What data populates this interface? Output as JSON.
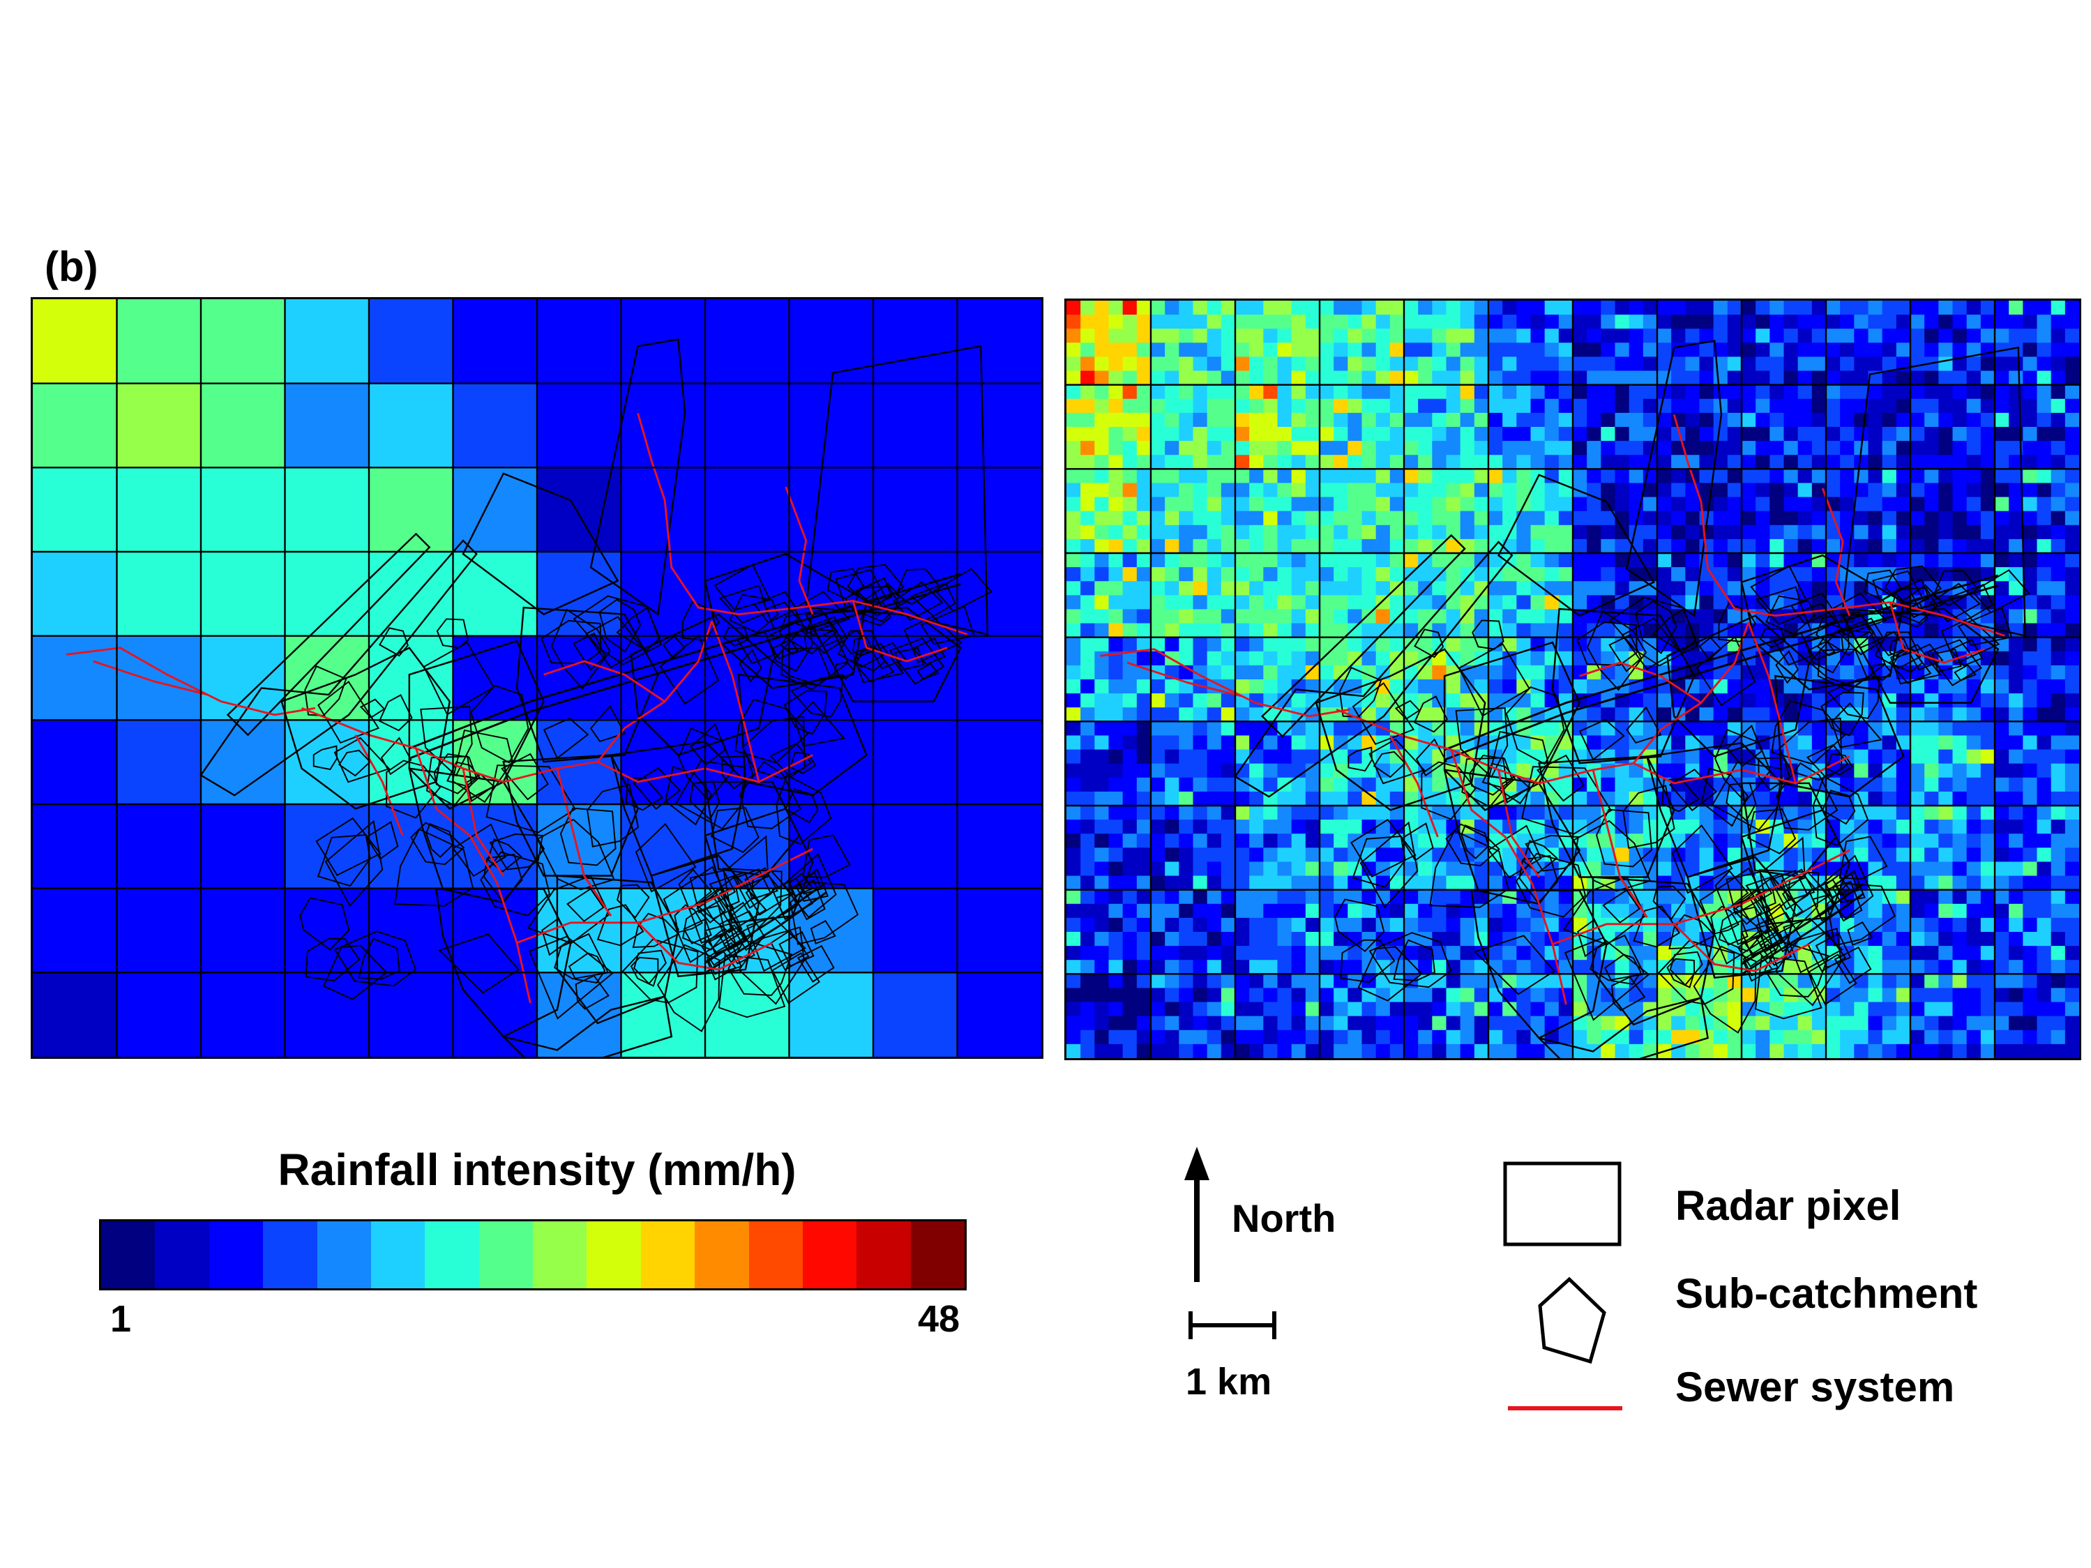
{
  "panel_label": "(b)",
  "colorbar": {
    "title": "Rainfall intensity (mm/h)",
    "min_label": "1",
    "max_label": "48",
    "colors": [
      "#000080",
      "#0000c4",
      "#0000ff",
      "#0a44ff",
      "#1488ff",
      "#1ed0ff",
      "#29ffd6",
      "#55ff8c",
      "#96ff4a",
      "#d4ff0b",
      "#ffd400",
      "#ff8c00",
      "#ff4a00",
      "#ff0800",
      "#c80000",
      "#800000"
    ]
  },
  "north_label": "North",
  "scale_label": "1 km",
  "legend": {
    "radar_pixel": "Radar pixel",
    "sub_catchment": "Sub-catchment",
    "sewer_system": "Sewer system"
  },
  "colors": {
    "sewer": "#e8141e",
    "catchment": "#000000",
    "grid": "#000000"
  },
  "left_map": {
    "cols": 12,
    "rows": 9,
    "levels": [
      [
        9,
        7,
        7,
        5,
        3,
        2,
        2,
        2,
        2,
        2,
        2,
        2
      ],
      [
        7,
        8,
        7,
        4,
        5,
        3,
        2,
        2,
        2,
        2,
        2,
        2
      ],
      [
        6,
        6,
        6,
        6,
        7,
        4,
        1,
        2,
        2,
        2,
        2,
        2
      ],
      [
        5,
        6,
        6,
        6,
        6,
        6,
        3,
        2,
        2,
        2,
        2,
        2
      ],
      [
        4,
        4,
        5,
        7,
        6,
        2,
        2,
        2,
        2,
        2,
        2,
        2
      ],
      [
        2,
        3,
        4,
        5,
        6,
        7,
        3,
        2,
        2,
        2,
        2,
        2
      ],
      [
        2,
        2,
        2,
        3,
        3,
        3,
        4,
        3,
        3,
        2,
        2,
        2
      ],
      [
        2,
        2,
        2,
        2,
        2,
        2,
        5,
        5,
        5,
        4,
        2,
        2
      ],
      [
        1,
        2,
        2,
        2,
        2,
        2,
        4,
        6,
        6,
        5,
        3,
        2
      ]
    ]
  },
  "right_map": {
    "cols": 12,
    "rows": 9,
    "sub": 6,
    "levels": [
      [
        9,
        6,
        7,
        6,
        5,
        3,
        2,
        2,
        2,
        2,
        2,
        2
      ],
      [
        8,
        6,
        7,
        6,
        5,
        4,
        2,
        2,
        2,
        2,
        2,
        2
      ],
      [
        7,
        6,
        6,
        6,
        6,
        5,
        2,
        1,
        2,
        2,
        1,
        2
      ],
      [
        5,
        6,
        6,
        6,
        6,
        5,
        2,
        2,
        2,
        2,
        2,
        2
      ],
      [
        4,
        4,
        5,
        6,
        6,
        4,
        3,
        2,
        2,
        3,
        3,
        2
      ],
      [
        2,
        3,
        4,
        5,
        6,
        6,
        4,
        3,
        3,
        3,
        4,
        3
      ],
      [
        2,
        2,
        3,
        4,
        4,
        4,
        5,
        4,
        4,
        4,
        4,
        3
      ],
      [
        2,
        2,
        3,
        3,
        3,
        3,
        5,
        5,
        6,
        4,
        3,
        3
      ],
      [
        1,
        2,
        2,
        3,
        3,
        3,
        5,
        7,
        6,
        4,
        3,
        2
      ]
    ]
  }
}
